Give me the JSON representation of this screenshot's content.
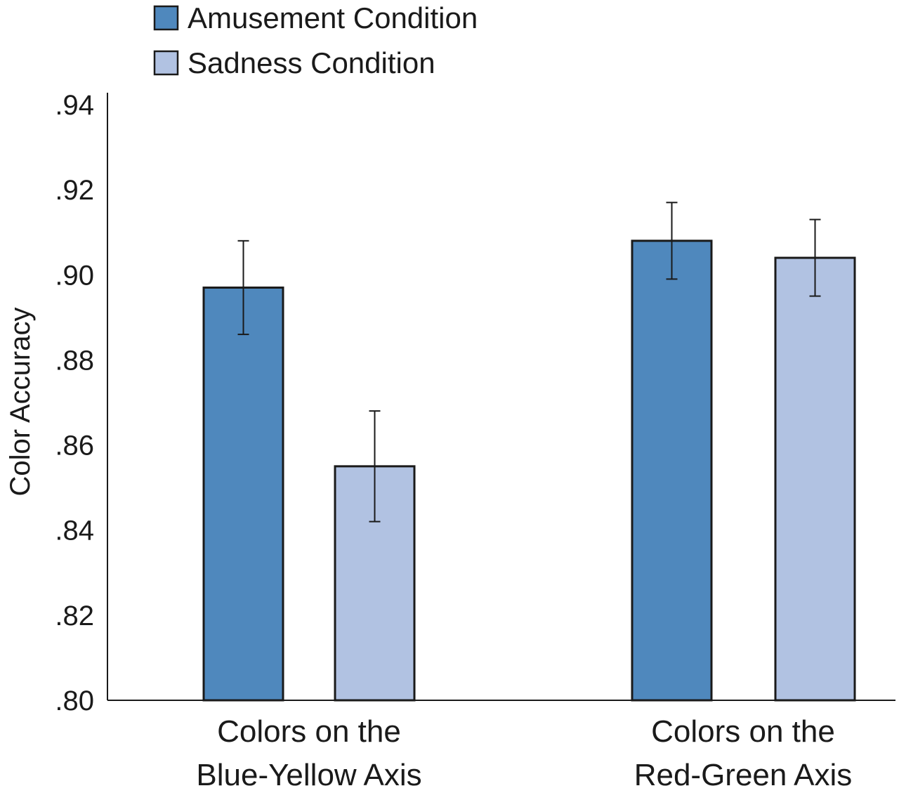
{
  "chart_data": {
    "type": "bar",
    "title": "",
    "xlabel": "",
    "ylabel": "Color Accuracy",
    "ylim": [
      0.8,
      0.94
    ],
    "yticks": [
      0.8,
      0.82,
      0.84,
      0.86,
      0.88,
      0.9,
      0.92,
      0.94
    ],
    "ytick_labels": [
      ".80",
      ".82",
      ".84",
      ".86",
      ".88",
      ".90",
      ".92",
      ".94"
    ],
    "categories": [
      [
        "Colors on the",
        "Blue-Yellow Axis"
      ],
      [
        "Colors on the",
        "Red-Green Axis"
      ]
    ],
    "series": [
      {
        "name": "Amusement Condition",
        "color": "#4f88bd",
        "values": [
          0.897,
          0.908
        ],
        "error_low": [
          0.886,
          0.899
        ],
        "error_high": [
          0.908,
          0.917
        ]
      },
      {
        "name": "Sadness Condition",
        "color": "#b1c2e2",
        "values": [
          0.855,
          0.904
        ],
        "error_low": [
          0.842,
          0.895
        ],
        "error_high": [
          0.868,
          0.913
        ]
      }
    ],
    "legend": "top-left",
    "grid": false
  }
}
